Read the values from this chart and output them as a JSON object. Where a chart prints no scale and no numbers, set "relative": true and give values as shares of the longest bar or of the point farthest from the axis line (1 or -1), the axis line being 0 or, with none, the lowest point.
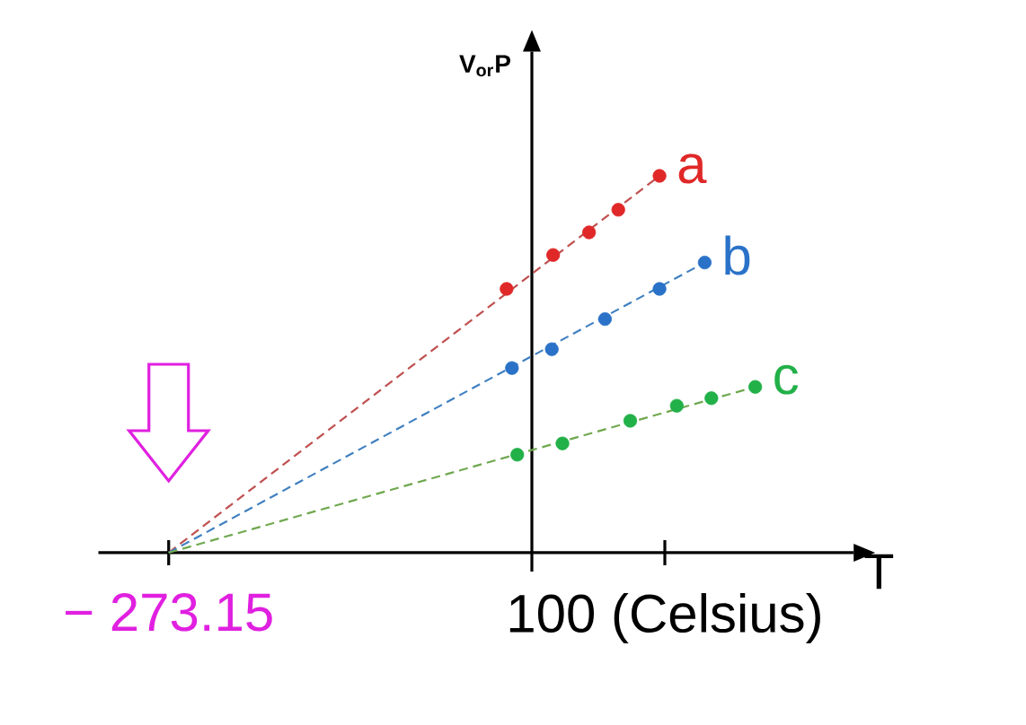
{
  "chart_data": {
    "type": "scatter",
    "relative": true,
    "xlabel": "T",
    "ylabel": "V$_{or}$P",
    "xlim": [
      -326,
      242
    ],
    "xticks": [
      {
        "value": -273.15,
        "label": "− 273.15"
      },
      {
        "value": 100,
        "label": "100 (Celsius)"
      }
    ],
    "marker": "circle",
    "grid": false,
    "series": [
      {
        "name": "a",
        "color": "#e02828",
        "x": [
          -19,
          16,
          43,
          65,
          96
        ],
        "values": [
          0.7,
          0.79,
          0.85,
          0.91,
          1.0
        ]
      },
      {
        "name": "b",
        "color": "#2a72c8",
        "x": [
          -15,
          15,
          55,
          96,
          130
        ],
        "values": [
          0.49,
          0.54,
          0.62,
          0.7,
          0.77
        ]
      },
      {
        "name": "c",
        "color": "#22b048",
        "x": [
          -11,
          23,
          74,
          109,
          135,
          168
        ],
        "values": [
          0.26,
          0.29,
          0.35,
          0.39,
          0.41,
          0.44
        ]
      },
      {
        "color": "#c05050",
        "type": "line",
        "line_style": "dashed",
        "marker": "none",
        "x": [
          -273.15,
          96
        ],
        "values": [
          0,
          1.0
        ]
      },
      {
        "color": "#4080c0",
        "type": "line",
        "line_style": "dashed",
        "marker": "none",
        "x": [
          -273.15,
          130
        ],
        "values": [
          0,
          0.77
        ]
      },
      {
        "color": "#70a850",
        "type": "line",
        "line_style": "dashed",
        "marker": "none",
        "x": [
          -273.15,
          168
        ],
        "values": [
          0,
          0.44
        ]
      }
    ]
  }
}
